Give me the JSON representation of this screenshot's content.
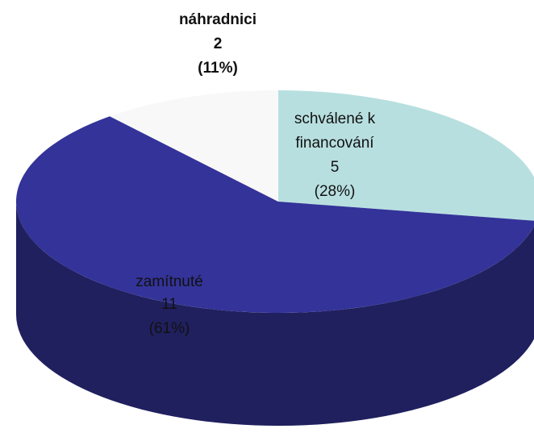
{
  "chart_data": {
    "type": "pie3d",
    "categories": [
      "schválené k financování",
      "zamítnuté",
      "náhradnici"
    ],
    "values": [
      5,
      11,
      2
    ],
    "percent_labels": [
      "(28%)",
      "(61%)",
      "(11%)"
    ],
    "colors": [
      "#b8dfe0",
      "#333399",
      "#f8f8f8"
    ]
  }
}
